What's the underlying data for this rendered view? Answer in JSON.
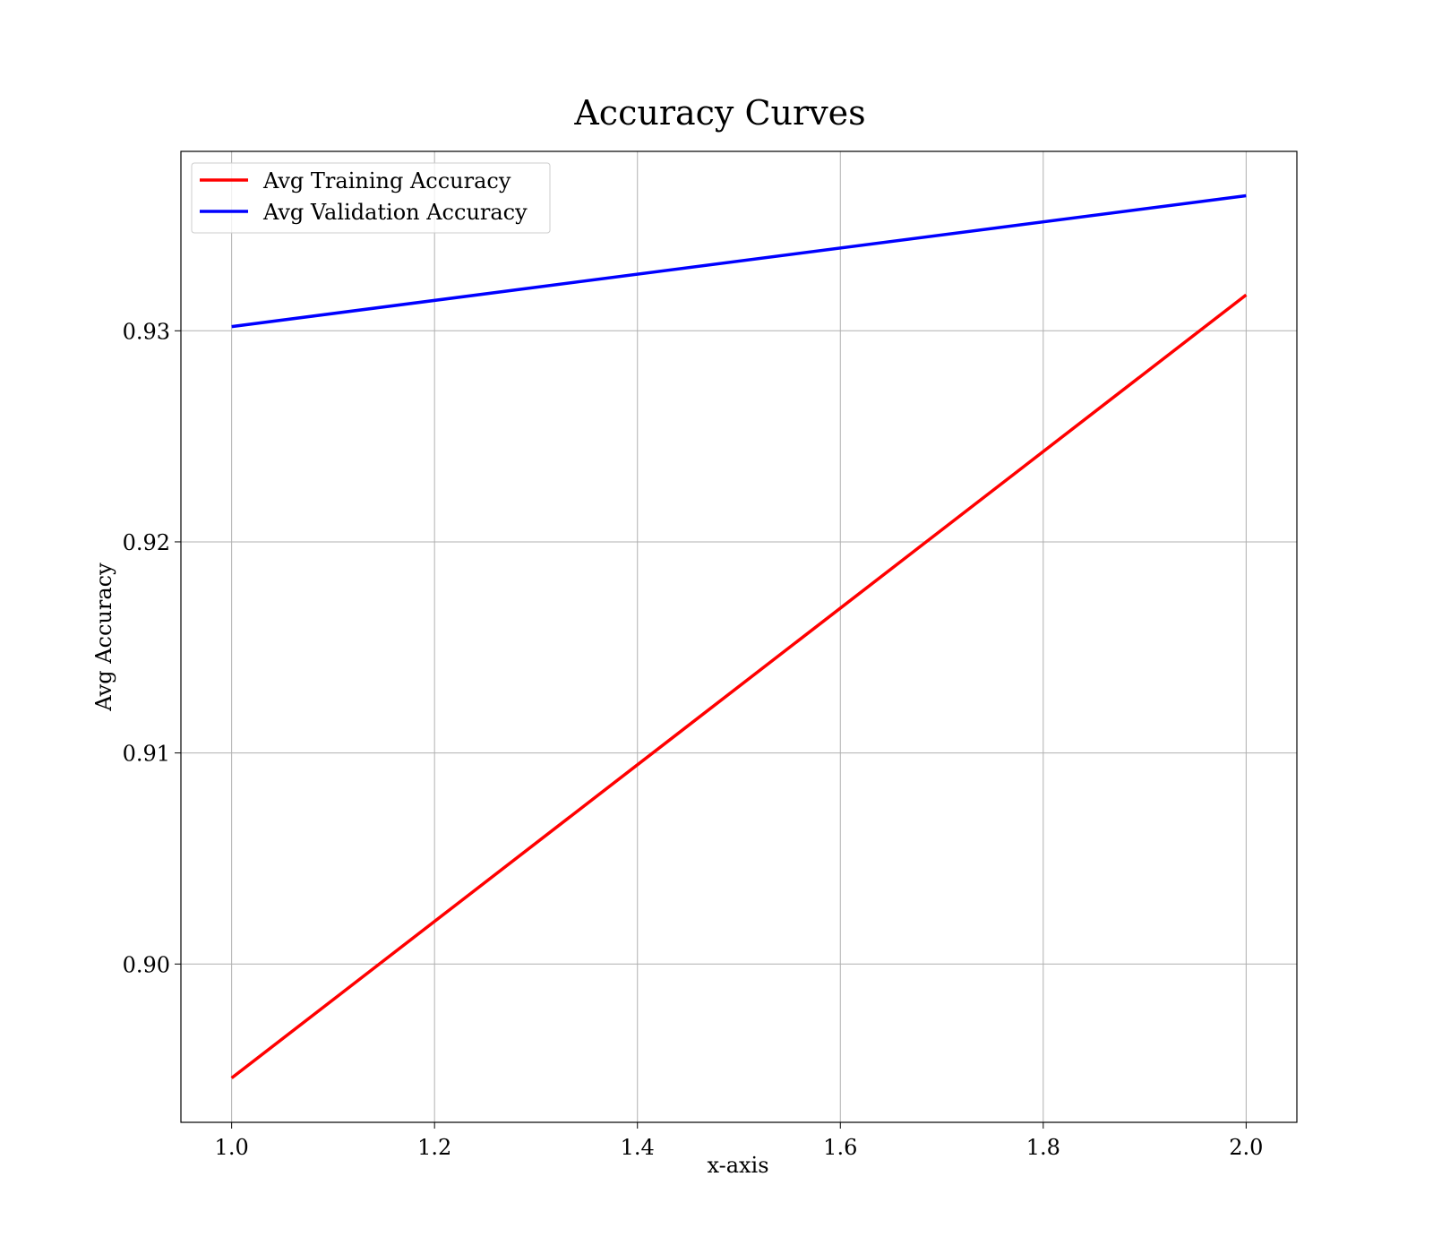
{
  "chart_data": {
    "type": "line",
    "title": "Accuracy Curves",
    "xlabel": "x-axis",
    "ylabel": "Avg Accuracy",
    "xlim": [
      0.95,
      2.05
    ],
    "ylim": [
      0.8925,
      0.9385
    ],
    "x_ticks": [
      1.0,
      1.2,
      1.4,
      1.6,
      1.8,
      2.0
    ],
    "x_tick_labels": [
      "1.0",
      "1.2",
      "1.4",
      "1.6",
      "1.8",
      "2.0"
    ],
    "y_ticks": [
      0.9,
      0.91,
      0.92,
      0.93
    ],
    "y_tick_labels": [
      "0.90",
      "0.91",
      "0.92",
      "0.93"
    ],
    "grid": true,
    "legend_position": "upper-left",
    "series": [
      {
        "name": "Avg Training Accuracy",
        "color": "#ff0000",
        "x": [
          1.0,
          2.0
        ],
        "y": [
          0.8946,
          0.9317
        ]
      },
      {
        "name": "Avg Validation Accuracy",
        "color": "#0000ff",
        "x": [
          1.0,
          2.0
        ],
        "y": [
          0.9302,
          0.9364
        ]
      }
    ]
  }
}
